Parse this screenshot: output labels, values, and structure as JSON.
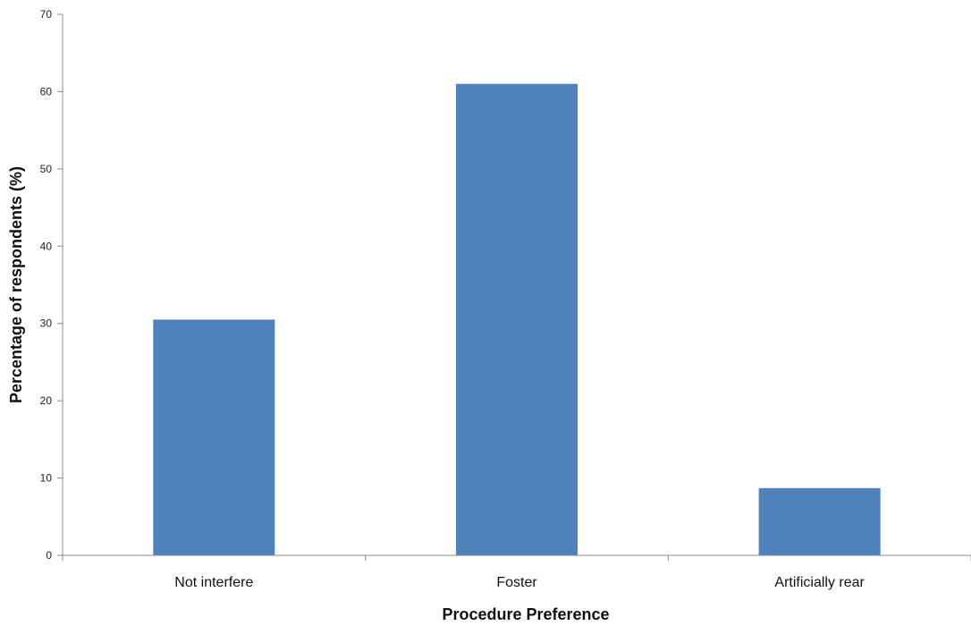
{
  "chart_data": {
    "type": "bar",
    "categories": [
      "Not interfere",
      "Foster",
      "Artificially rear"
    ],
    "values": [
      30.5,
      61,
      8.7
    ],
    "title": "",
    "xlabel": "Procedure Preference",
    "ylabel": "Percentage of respondents (%)",
    "ylim": [
      0,
      70
    ],
    "yticks": [
      0,
      10,
      20,
      30,
      40,
      50,
      60,
      70
    ],
    "grid": false,
    "legend": "none",
    "colors": {
      "bar": "#4f81bd",
      "axis": "#8c8c8c"
    }
  }
}
